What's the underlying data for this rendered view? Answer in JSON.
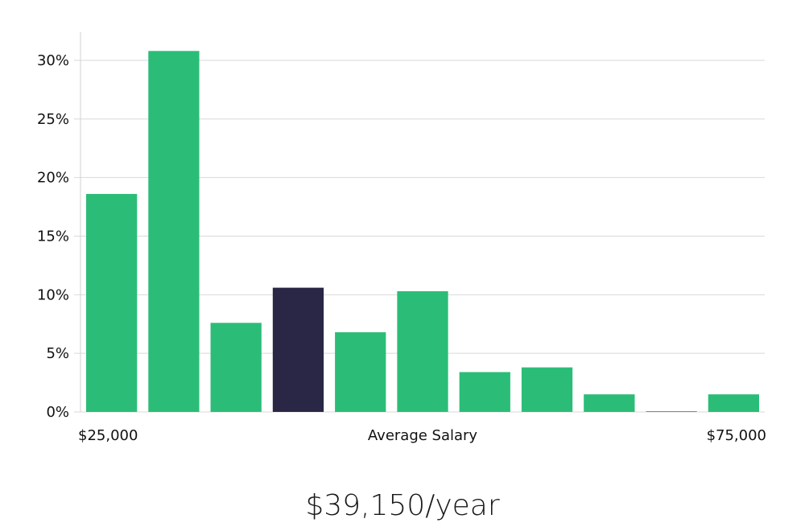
{
  "chart_data": {
    "type": "bar",
    "xlabel": "Average Salary",
    "x_range_labels": [
      "$25,000",
      "$75,000"
    ],
    "ylim": [
      0,
      32
    ],
    "yticks": [
      0,
      5,
      10,
      15,
      20,
      25,
      30
    ],
    "ytick_labels": [
      "0%",
      "5%",
      "10%",
      "15%",
      "20%",
      "25%",
      "30%"
    ],
    "grid": true,
    "values": [
      18.6,
      30.8,
      7.6,
      10.6,
      6.8,
      10.3,
      3.4,
      3.8,
      1.5,
      0.05,
      1.5
    ],
    "highlight_index": 3,
    "colors": {
      "bar": "#2bbd77",
      "highlight": "#2a2646"
    }
  },
  "summary": {
    "salary_text": "$39,150/year"
  }
}
